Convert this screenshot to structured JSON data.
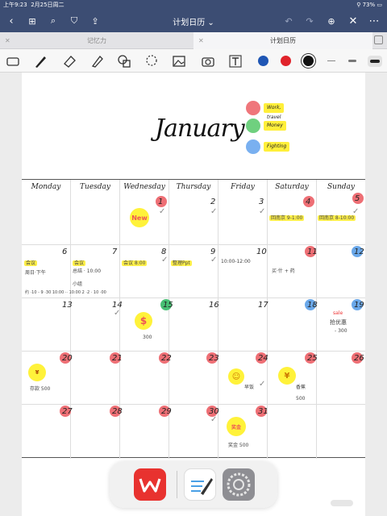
{
  "status": {
    "time": "上午9:23",
    "date": "2月25日周二",
    "battery": "73%"
  },
  "nav": {
    "title": "计划日历 ⌄"
  },
  "tabs": [
    {
      "label": "记忆力"
    },
    {
      "label": "计划日历"
    }
  ],
  "toolbar": {
    "colors": [
      "#1f56b4",
      "#e0232b",
      "#111111"
    ]
  },
  "page": {
    "title": "January",
    "legend": [
      {
        "label": "Work, travel",
        "color": "#ef767b"
      },
      {
        "label": "Money",
        "color": "#6fd07f"
      },
      {
        "label": "Fighting",
        "color": "#79b0f0"
      }
    ],
    "weekdays": [
      "Monday",
      "Tuesday",
      "Wednesday",
      "Thursday",
      "Friday",
      "Saturday",
      "Sunday"
    ],
    "days": [
      "1",
      "2",
      "3",
      "4",
      "5",
      "6",
      "7",
      "8",
      "9",
      "10",
      "11",
      "12",
      "13",
      "14",
      "15",
      "16",
      "17",
      "18",
      "19",
      "20",
      "21",
      "22",
      "23",
      "24",
      "25",
      "26",
      "27",
      "28",
      "29",
      "30",
      "31"
    ],
    "notes": {
      "new": "New",
      "sat3": "回南京 9-1:00",
      "sun4": "回南京 8-10:00",
      "mon6a": "会议",
      "mon6b": "周日·下午",
      "tue7a": "会议",
      "tue7b": "总结 · 10:00",
      "tue7c": "小组",
      "wed8": "会议 8:00",
      "thu9": "整理Ppt",
      "fri10": "10:00-12:00",
      "sat11": "买·什 + 药",
      "row2": "约 ·10 - 9 ·30  10:00 ·· 10:00    2 ·2 · 10 ·00",
      "sun19": "抢优惠",
      "sun19b": "- 300",
      "wed15": "300",
      "mon20": "存款 500",
      "fri24": "早饭",
      "sat25": "香蕉",
      "sat25b": "500",
      "fri31": "奖金 500"
    }
  }
}
